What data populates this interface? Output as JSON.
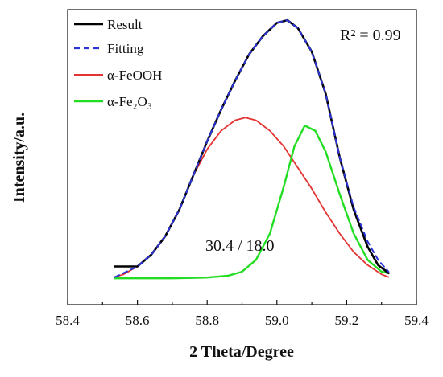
{
  "chart_data": {
    "type": "line",
    "xlabel": "2 Theta/Degree",
    "ylabel": "Intensity/a.u.",
    "xlim": [
      58.4,
      59.4
    ],
    "ylim": [
      0,
      1.12
    ],
    "x_ticks": [
      "58.4",
      "58.6",
      "58.8",
      "59.0",
      "59.2",
      "59.4"
    ],
    "grid": false,
    "legend_position": "top-left",
    "annotations": {
      "r2": "R² = 0.99",
      "ratio": "30.4 / 18.0"
    },
    "series": [
      {
        "name": "Result",
        "color": "#000000",
        "style": "solid",
        "x": [
          58.535,
          58.56,
          58.6,
          58.64,
          58.68,
          58.72,
          58.76,
          58.8,
          58.84,
          58.88,
          58.92,
          58.96,
          59.0,
          59.03,
          59.06,
          59.1,
          59.14,
          59.18,
          59.22,
          59.26,
          59.29,
          59.32
        ],
        "y": [
          0.145,
          0.145,
          0.145,
          0.19,
          0.26,
          0.36,
          0.49,
          0.62,
          0.74,
          0.85,
          0.95,
          1.02,
          1.07,
          1.08,
          1.05,
          0.96,
          0.8,
          0.56,
          0.36,
          0.22,
          0.15,
          0.12
        ]
      },
      {
        "name": "Fitting",
        "color": "#2a33d6",
        "style": "dashed",
        "x": [
          58.535,
          58.56,
          58.6,
          58.64,
          58.68,
          58.72,
          58.76,
          58.8,
          58.84,
          58.88,
          58.92,
          58.96,
          59.0,
          59.03,
          59.06,
          59.1,
          59.14,
          59.18,
          59.22,
          59.26,
          59.29,
          59.32
        ],
        "y": [
          0.105,
          0.12,
          0.145,
          0.19,
          0.26,
          0.36,
          0.49,
          0.62,
          0.74,
          0.85,
          0.95,
          1.02,
          1.07,
          1.08,
          1.05,
          0.96,
          0.8,
          0.56,
          0.37,
          0.24,
          0.17,
          0.125
        ]
      },
      {
        "name": "α-FeOOH",
        "color": "#e53333",
        "style": "solid",
        "x": [
          58.535,
          58.56,
          58.6,
          58.64,
          58.68,
          58.72,
          58.76,
          58.8,
          58.84,
          58.88,
          58.91,
          58.94,
          58.98,
          59.02,
          59.06,
          59.1,
          59.14,
          59.18,
          59.22,
          59.26,
          59.3,
          59.32
        ],
        "y": [
          0.105,
          0.115,
          0.145,
          0.19,
          0.26,
          0.36,
          0.49,
          0.59,
          0.66,
          0.7,
          0.71,
          0.7,
          0.66,
          0.6,
          0.52,
          0.44,
          0.35,
          0.27,
          0.2,
          0.15,
          0.115,
          0.105
        ]
      },
      {
        "name": "α-Fe₂O₃",
        "color": "#22dd22",
        "style": "solid",
        "x": [
          58.535,
          58.7,
          58.8,
          58.86,
          58.9,
          58.94,
          58.98,
          59.02,
          59.05,
          59.08,
          59.11,
          59.14,
          59.18,
          59.22,
          59.26,
          59.3,
          59.32
        ],
        "y": [
          0.1,
          0.1,
          0.103,
          0.11,
          0.125,
          0.17,
          0.27,
          0.45,
          0.6,
          0.68,
          0.66,
          0.58,
          0.42,
          0.27,
          0.17,
          0.125,
          0.12
        ]
      }
    ]
  }
}
